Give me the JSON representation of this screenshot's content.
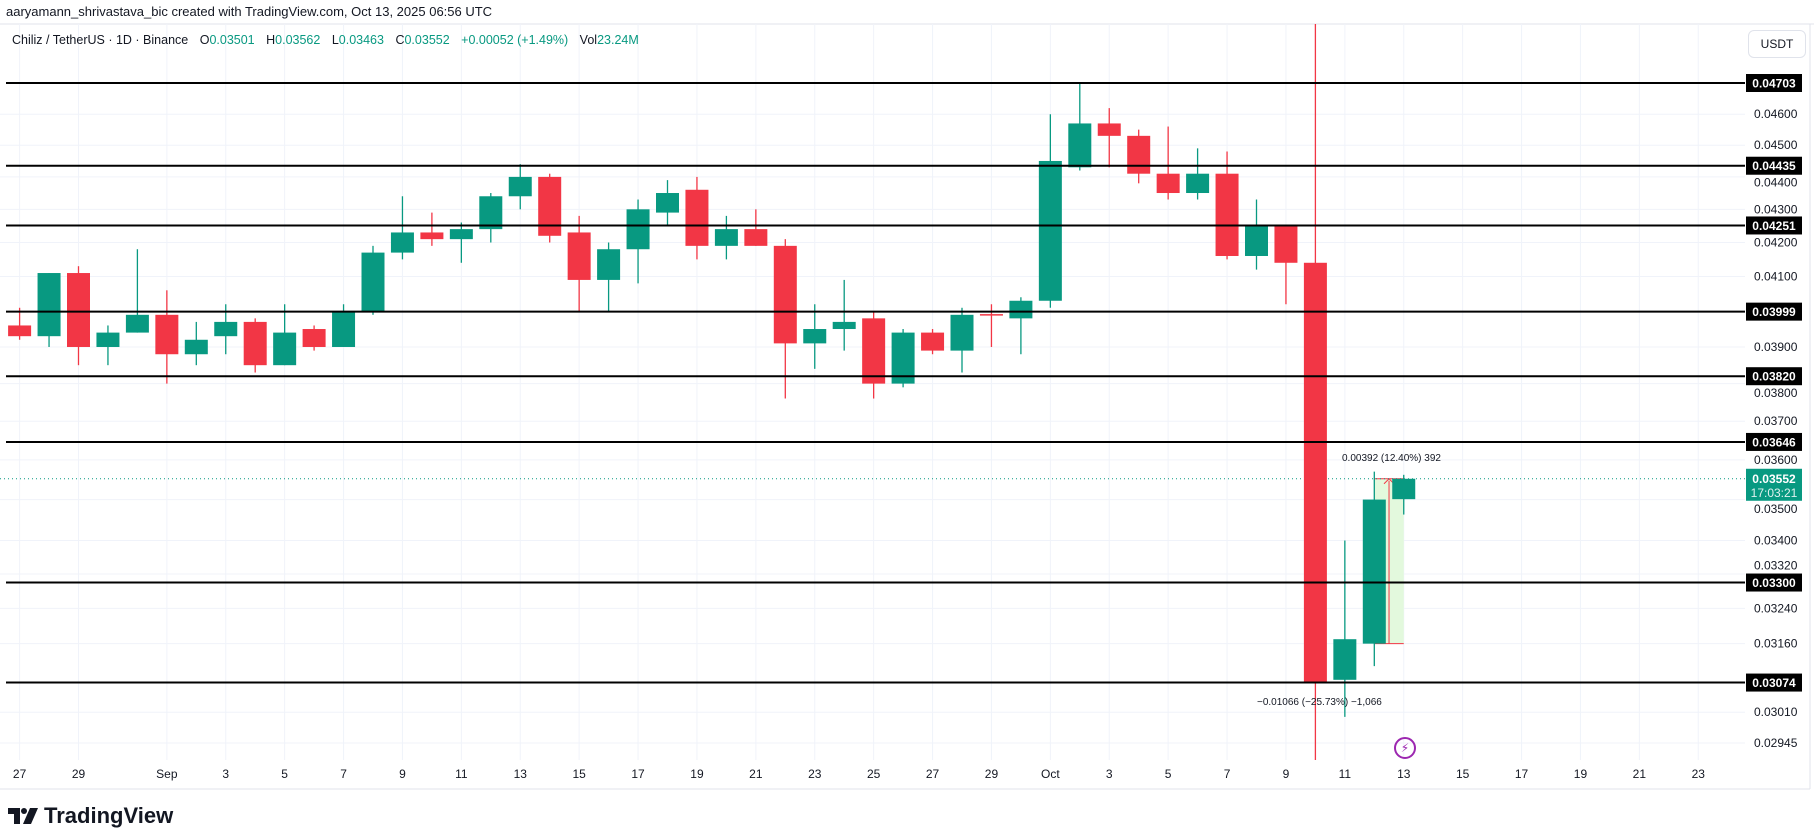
{
  "credit": "aaryamann_shrivastava_bic created with TradingView.com, Oct 13, 2025 06:56 UTC",
  "legend": {
    "symbol": "Chiliz / TetherUS · 1D · Binance",
    "o_label": "O",
    "o": "0.03501",
    "h_label": "H",
    "h": "0.03562",
    "l_label": "L",
    "l": "0.03463",
    "c_label": "C",
    "c": "0.03552",
    "change": "+0.00052 (+1.49%)",
    "vol_label": "Vol",
    "vol": "23.24M"
  },
  "currency_button": "USDT",
  "brand": "TradingView",
  "measurements": {
    "up": "0.00392 (12.40%) 392",
    "down": "−0.01066 (−25.73%) −1,066"
  },
  "icons": {
    "alert": "lightning-icon",
    "logo": "tradingview-logo-icon"
  },
  "colors": {
    "up": "#089981",
    "down": "#F23645",
    "level": "#000000",
    "measure_fill": "#e3f9dd",
    "alert": "#9c27b0"
  },
  "chart_data": {
    "type": "candlestick",
    "y_scale": "log",
    "ylim": [
      0.0288,
      0.0496
    ],
    "grid": true,
    "candles": [
      {
        "date": "2025-08-27",
        "o": 0.0396,
        "h": 0.0401,
        "l": 0.0392,
        "c": 0.0393
      },
      {
        "date": "2025-08-28",
        "o": 0.0393,
        "h": 0.0411,
        "l": 0.039,
        "c": 0.0411
      },
      {
        "date": "2025-08-29",
        "o": 0.0411,
        "h": 0.0413,
        "l": 0.0385,
        "c": 0.039
      },
      {
        "date": "2025-08-30",
        "o": 0.039,
        "h": 0.0396,
        "l": 0.0385,
        "c": 0.0394
      },
      {
        "date": "2025-08-31",
        "o": 0.0394,
        "h": 0.0418,
        "l": 0.0394,
        "c": 0.0399
      },
      {
        "date": "2025-09-01",
        "o": 0.0399,
        "h": 0.0406,
        "l": 0.038,
        "c": 0.0388
      },
      {
        "date": "2025-09-02",
        "o": 0.0388,
        "h": 0.0397,
        "l": 0.0385,
        "c": 0.0392
      },
      {
        "date": "2025-09-03",
        "o": 0.0393,
        "h": 0.0402,
        "l": 0.0388,
        "c": 0.0397
      },
      {
        "date": "2025-09-04",
        "o": 0.0397,
        "h": 0.0398,
        "l": 0.0383,
        "c": 0.0385
      },
      {
        "date": "2025-09-05",
        "o": 0.0385,
        "h": 0.0402,
        "l": 0.0385,
        "c": 0.0394
      },
      {
        "date": "2025-09-06",
        "o": 0.0395,
        "h": 0.0396,
        "l": 0.0389,
        "c": 0.039
      },
      {
        "date": "2025-09-07",
        "o": 0.039,
        "h": 0.0402,
        "l": 0.039,
        "c": 0.04
      },
      {
        "date": "2025-09-08",
        "o": 0.04,
        "h": 0.0419,
        "l": 0.0399,
        "c": 0.0417
      },
      {
        "date": "2025-09-09",
        "o": 0.0417,
        "h": 0.0434,
        "l": 0.0415,
        "c": 0.0423
      },
      {
        "date": "2025-09-10",
        "o": 0.0423,
        "h": 0.0429,
        "l": 0.0419,
        "c": 0.0421
      },
      {
        "date": "2025-09-11",
        "o": 0.0421,
        "h": 0.0426,
        "l": 0.0414,
        "c": 0.0424
      },
      {
        "date": "2025-09-12",
        "o": 0.0424,
        "h": 0.0435,
        "l": 0.042,
        "c": 0.0434
      },
      {
        "date": "2025-09-13",
        "o": 0.0434,
        "h": 0.0444,
        "l": 0.043,
        "c": 0.044
      },
      {
        "date": "2025-09-14",
        "o": 0.044,
        "h": 0.0441,
        "l": 0.042,
        "c": 0.0422
      },
      {
        "date": "2025-09-15",
        "o": 0.0423,
        "h": 0.0428,
        "l": 0.04,
        "c": 0.0409
      },
      {
        "date": "2025-09-16",
        "o": 0.0409,
        "h": 0.042,
        "l": 0.04,
        "c": 0.0418
      },
      {
        "date": "2025-09-17",
        "o": 0.0418,
        "h": 0.0433,
        "l": 0.0408,
        "c": 0.043
      },
      {
        "date": "2025-09-18",
        "o": 0.0429,
        "h": 0.0439,
        "l": 0.0425,
        "c": 0.0435
      },
      {
        "date": "2025-09-19",
        "o": 0.0436,
        "h": 0.044,
        "l": 0.0415,
        "c": 0.0419
      },
      {
        "date": "2025-09-20",
        "o": 0.0419,
        "h": 0.0428,
        "l": 0.0415,
        "c": 0.0424
      },
      {
        "date": "2025-09-21",
        "o": 0.0424,
        "h": 0.043,
        "l": 0.0419,
        "c": 0.0419
      },
      {
        "date": "2025-09-22",
        "o": 0.0419,
        "h": 0.0421,
        "l": 0.0376,
        "c": 0.0391
      },
      {
        "date": "2025-09-23",
        "o": 0.0391,
        "h": 0.0402,
        "l": 0.0384,
        "c": 0.0395
      },
      {
        "date": "2025-09-24",
        "o": 0.0395,
        "h": 0.0409,
        "l": 0.0389,
        "c": 0.0397
      },
      {
        "date": "2025-09-25",
        "o": 0.0398,
        "h": 0.04,
        "l": 0.0376,
        "c": 0.038
      },
      {
        "date": "2025-09-26",
        "o": 0.038,
        "h": 0.0395,
        "l": 0.0379,
        "c": 0.0394
      },
      {
        "date": "2025-09-27",
        "o": 0.0394,
        "h": 0.0395,
        "l": 0.0388,
        "c": 0.0389
      },
      {
        "date": "2025-09-28",
        "o": 0.0389,
        "h": 0.0401,
        "l": 0.0383,
        "c": 0.0399
      },
      {
        "date": "2025-09-29",
        "o": 0.03992,
        "h": 0.0402,
        "l": 0.039,
        "c": 0.03988
      },
      {
        "date": "2025-09-30",
        "o": 0.0398,
        "h": 0.0404,
        "l": 0.0388,
        "c": 0.0403
      },
      {
        "date": "2025-10-01",
        "o": 0.0403,
        "h": 0.046,
        "l": 0.0401,
        "c": 0.0445
      },
      {
        "date": "2025-10-02",
        "o": 0.0443,
        "h": 0.047,
        "l": 0.0442,
        "c": 0.0457
      },
      {
        "date": "2025-10-03",
        "o": 0.0457,
        "h": 0.0462,
        "l": 0.0443,
        "c": 0.0453
      },
      {
        "date": "2025-10-04",
        "o": 0.0453,
        "h": 0.0455,
        "l": 0.0438,
        "c": 0.0441
      },
      {
        "date": "2025-10-05",
        "o": 0.0441,
        "h": 0.0456,
        "l": 0.0433,
        "c": 0.0435
      },
      {
        "date": "2025-10-06",
        "o": 0.0435,
        "h": 0.0449,
        "l": 0.0433,
        "c": 0.0441
      },
      {
        "date": "2025-10-07",
        "o": 0.0441,
        "h": 0.0448,
        "l": 0.0415,
        "c": 0.0416
      },
      {
        "date": "2025-10-08",
        "o": 0.0416,
        "h": 0.0433,
        "l": 0.0412,
        "c": 0.0425
      },
      {
        "date": "2025-10-09",
        "o": 0.0425,
        "h": 0.0425,
        "l": 0.0402,
        "c": 0.0414
      },
      {
        "date": "2025-10-10",
        "o": 0.0414,
        "h": 0.05,
        "l": 0.0285,
        "c": 0.03074
      },
      {
        "date": "2025-10-11",
        "o": 0.0308,
        "h": 0.034,
        "l": 0.03,
        "c": 0.0317
      },
      {
        "date": "2025-10-12",
        "o": 0.0316,
        "h": 0.0357,
        "l": 0.0311,
        "c": 0.035
      },
      {
        "date": "2025-10-13",
        "o": 0.03501,
        "h": 0.03562,
        "l": 0.03463,
        "c": 0.03552
      }
    ],
    "x_ticks": [
      {
        "label": "27",
        "date": "2025-08-27"
      },
      {
        "label": "29",
        "date": "2025-08-29"
      },
      {
        "label": "Sep",
        "date": "2025-09-01"
      },
      {
        "label": "3",
        "date": "2025-09-03"
      },
      {
        "label": "5",
        "date": "2025-09-05"
      },
      {
        "label": "7",
        "date": "2025-09-07"
      },
      {
        "label": "9",
        "date": "2025-09-09"
      },
      {
        "label": "11",
        "date": "2025-09-11"
      },
      {
        "label": "13",
        "date": "2025-09-13"
      },
      {
        "label": "15",
        "date": "2025-09-15"
      },
      {
        "label": "17",
        "date": "2025-09-17"
      },
      {
        "label": "19",
        "date": "2025-09-19"
      },
      {
        "label": "21",
        "date": "2025-09-21"
      },
      {
        "label": "23",
        "date": "2025-09-23"
      },
      {
        "label": "25",
        "date": "2025-09-25"
      },
      {
        "label": "27",
        "date": "2025-09-27"
      },
      {
        "label": "29",
        "date": "2025-09-29"
      },
      {
        "label": "Oct",
        "date": "2025-10-01"
      },
      {
        "label": "3",
        "date": "2025-10-03"
      },
      {
        "label": "5",
        "date": "2025-10-05"
      },
      {
        "label": "7",
        "date": "2025-10-07"
      },
      {
        "label": "9",
        "date": "2025-10-09"
      },
      {
        "label": "11",
        "date": "2025-10-11"
      },
      {
        "label": "13",
        "date": "2025-10-13"
      },
      {
        "label": "15",
        "date": "2025-10-15"
      },
      {
        "label": "17",
        "date": "2025-10-17"
      },
      {
        "label": "19",
        "date": "2025-10-19"
      },
      {
        "label": "21",
        "date": "2025-10-21"
      },
      {
        "label": "23",
        "date": "2025-10-23"
      }
    ],
    "y_ticks": [
      "0.04600",
      "0.04500",
      "0.04400",
      "0.04300",
      "0.04200",
      "0.04100",
      "0.03900",
      "0.03800",
      "0.03700",
      "0.03600",
      "0.03500",
      "0.03400",
      "0.03320",
      "0.03240",
      "0.03160",
      "0.03010",
      "0.02945"
    ],
    "levels": [
      "0.04703",
      "0.04435",
      "0.04251",
      "0.03999",
      "0.03820",
      "0.03646",
      "0.03300",
      "0.03074"
    ],
    "last_price": {
      "value": "0.03552",
      "countdown": "17:03:21"
    },
    "measure_up": {
      "from_date": "2025-10-12",
      "to_date": "2025-10-13",
      "from": 0.0316,
      "to": 0.03552
    },
    "measure_down": {
      "from": 0.0414,
      "to": 0.03074
    }
  }
}
